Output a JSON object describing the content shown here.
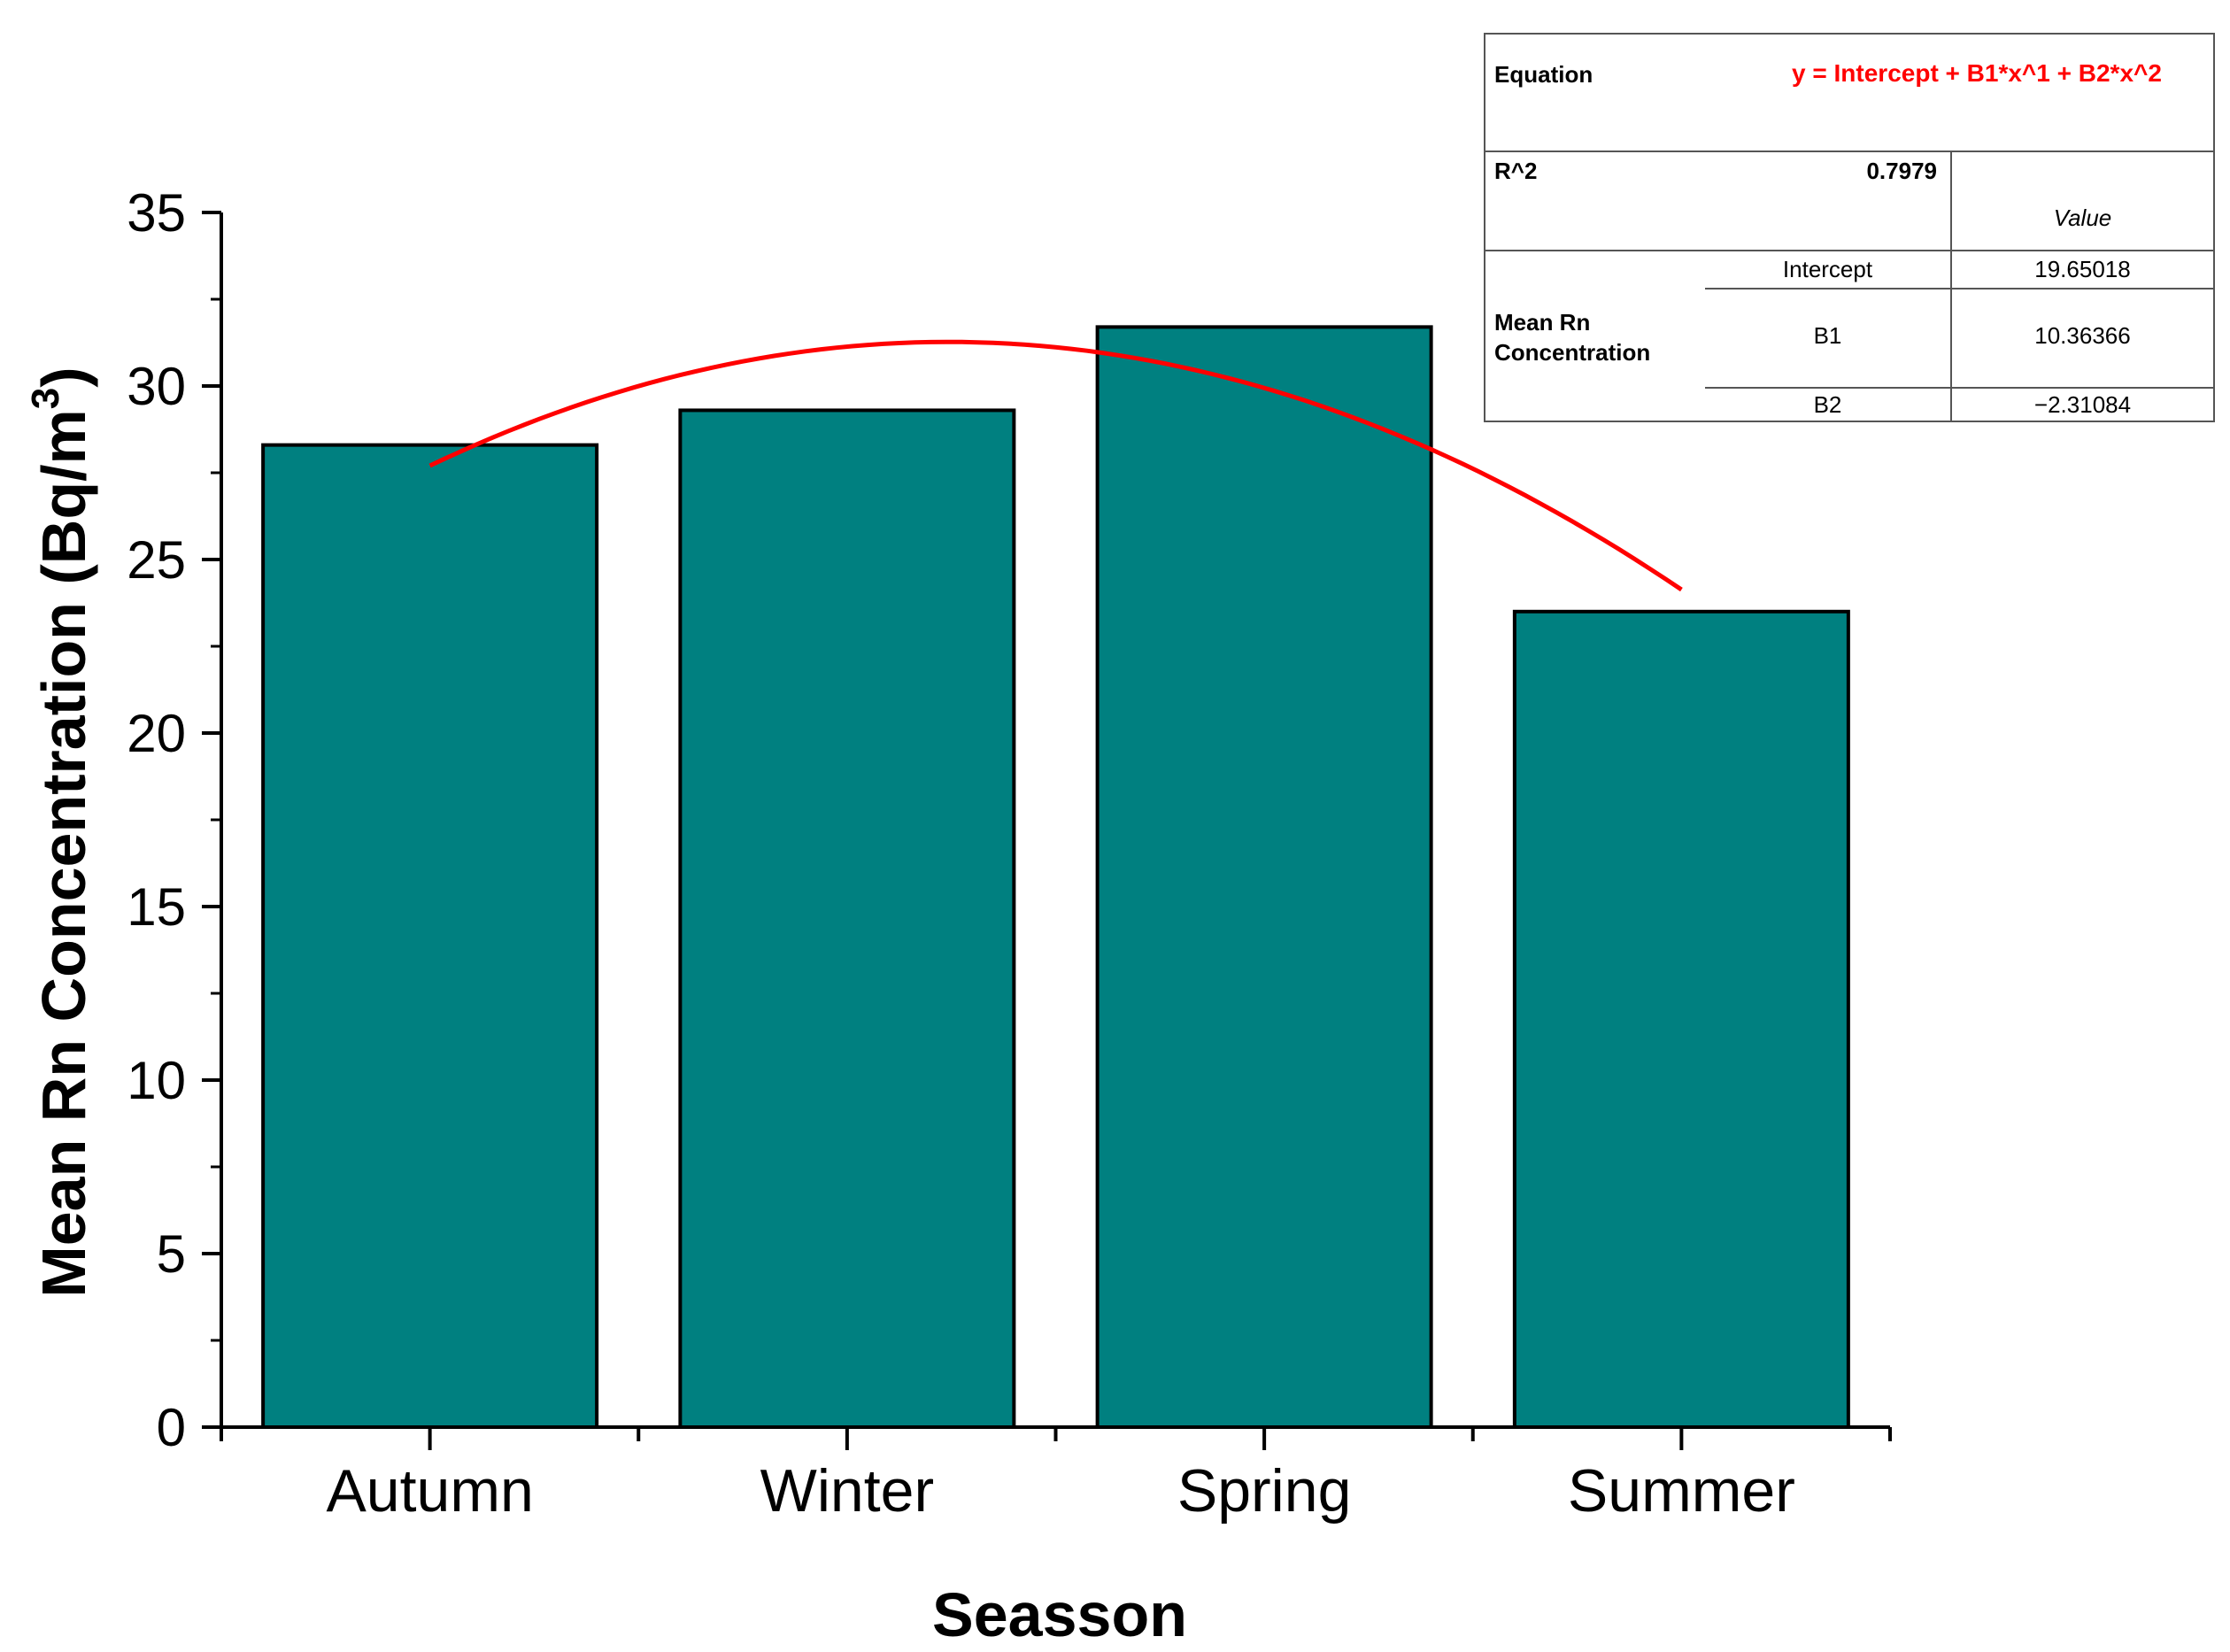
{
  "chart_data": {
    "type": "bar",
    "categories": [
      "Autumn",
      "Winter",
      "Spring",
      "Summer"
    ],
    "values": [
      28.3,
      29.3,
      31.7,
      23.5
    ],
    "bar_color": "#008080",
    "xlabel": "Seasson",
    "ylabel_main": "Mean Rn Concentration (Bq/m",
    "ylabel_sup": "3",
    "ylabel_close": ")",
    "ylim": [
      0,
      35
    ],
    "yticks": [
      "0",
      "5",
      "10",
      "15",
      "20",
      "25",
      "30",
      "35"
    ],
    "fit": {
      "type": "polynomial",
      "color": "#ff0000",
      "intercept": 19.65018,
      "b1": 10.36366,
      "b2": -2.31084
    }
  },
  "fit_table": {
    "equation_label": "Equation",
    "equation": "y = Intercept + B1*x^1 + B2*x^2",
    "r2_label": "R^2",
    "r2_value": "0.7979",
    "value_header": "Value",
    "series_name_line1": "Mean Rn",
    "series_name_line2": "Concentration",
    "rows": [
      {
        "param": "Intercept",
        "value": "19.65018"
      },
      {
        "param": "B1",
        "value": "10.36366"
      },
      {
        "param": "B2",
        "value": "−2.31084"
      }
    ]
  }
}
